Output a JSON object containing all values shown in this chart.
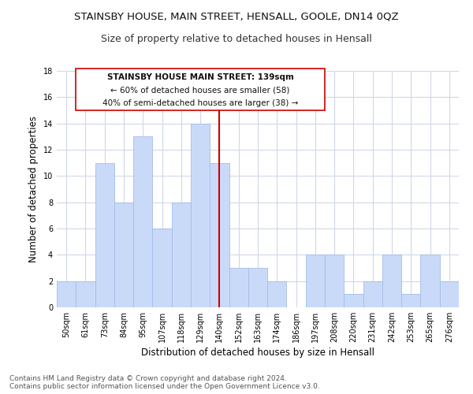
{
  "title": "STAINSBY HOUSE, MAIN STREET, HENSALL, GOOLE, DN14 0QZ",
  "subtitle": "Size of property relative to detached houses in Hensall",
  "xlabel": "Distribution of detached houses by size in Hensall",
  "ylabel": "Number of detached properties",
  "categories": [
    "50sqm",
    "61sqm",
    "73sqm",
    "84sqm",
    "95sqm",
    "107sqm",
    "118sqm",
    "129sqm",
    "140sqm",
    "152sqm",
    "163sqm",
    "174sqm",
    "186sqm",
    "197sqm",
    "208sqm",
    "220sqm",
    "231sqm",
    "242sqm",
    "253sqm",
    "265sqm",
    "276sqm"
  ],
  "values": [
    2,
    2,
    11,
    8,
    13,
    6,
    8,
    14,
    11,
    3,
    3,
    2,
    0,
    4,
    4,
    1,
    2,
    4,
    1,
    4,
    2
  ],
  "bar_color": "#c9daf8",
  "bar_edge_color": "#a4bde6",
  "vline_x": 8,
  "vline_color": "#cc0000",
  "ylim": [
    0,
    18
  ],
  "yticks": [
    0,
    2,
    4,
    6,
    8,
    10,
    12,
    14,
    16,
    18
  ],
  "annotation_title": "STAINSBY HOUSE MAIN STREET: 139sqm",
  "annotation_line1": "← 60% of detached houses are smaller (58)",
  "annotation_line2": "40% of semi-detached houses are larger (38) →",
  "footer_line1": "Contains HM Land Registry data © Crown copyright and database right 2024.",
  "footer_line2": "Contains public sector information licensed under the Open Government Licence v3.0.",
  "title_fontsize": 9.5,
  "subtitle_fontsize": 9,
  "xlabel_fontsize": 8.5,
  "ylabel_fontsize": 8.5,
  "tick_fontsize": 7,
  "footer_fontsize": 6.5,
  "annotation_fontsize": 7.5,
  "background_color": "#ffffff",
  "grid_color": "#d0d8e8"
}
